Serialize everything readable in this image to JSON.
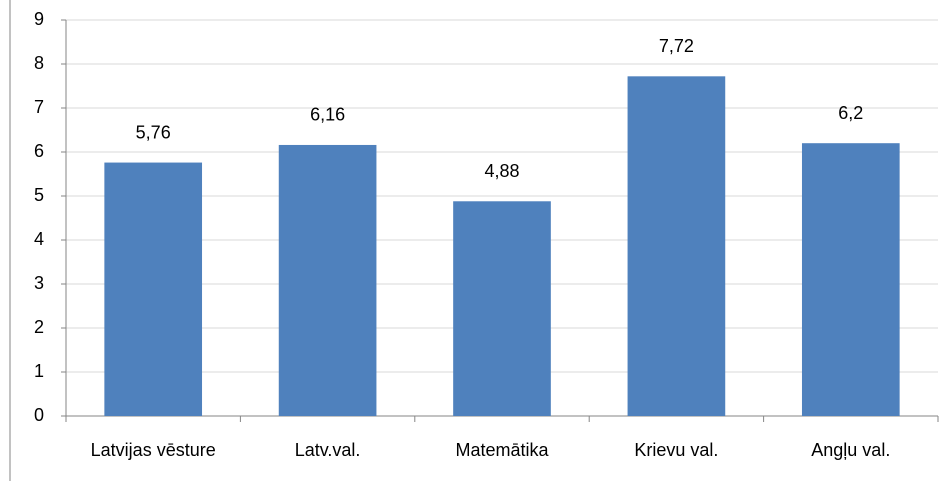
{
  "chart_data": {
    "type": "bar",
    "categories": [
      "Latvijas vēsture",
      "Latv.val.",
      "Matemātika",
      "Krievu val.",
      "Angļu val."
    ],
    "values": [
      5.76,
      6.16,
      4.88,
      7.72,
      6.2
    ],
    "value_labels": [
      "5,76",
      "6,16",
      "4,88",
      "7,72",
      "6,2"
    ],
    "color": "#4f81bd",
    "ylim": [
      0,
      9
    ],
    "yticks": [
      0,
      1,
      2,
      3,
      4,
      5,
      6,
      7,
      8,
      9
    ],
    "grid": true
  }
}
